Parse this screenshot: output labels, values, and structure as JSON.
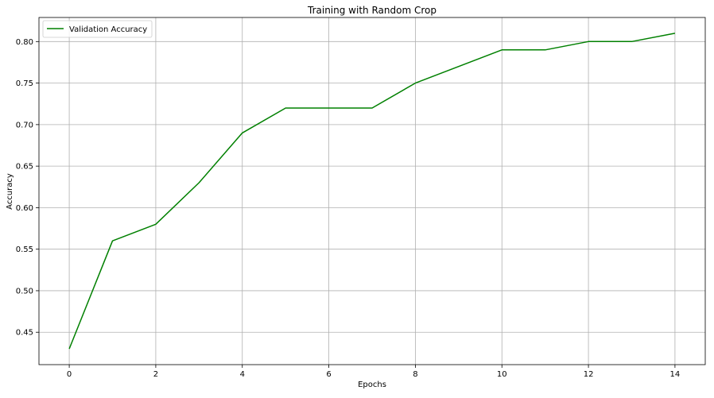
{
  "chart_data": {
    "type": "line",
    "title": "Training with Random Crop",
    "xlabel": "Epochs",
    "ylabel": "Accuracy",
    "x": [
      0,
      1,
      2,
      3,
      4,
      5,
      6,
      7,
      8,
      9,
      10,
      11,
      12,
      13,
      14
    ],
    "series": [
      {
        "name": "Validation Accuracy",
        "color": "#008000",
        "values": [
          0.43,
          0.56,
          0.58,
          0.63,
          0.69,
          0.72,
          0.72,
          0.72,
          0.75,
          0.77,
          0.79,
          0.79,
          0.8,
          0.8,
          0.81
        ]
      }
    ],
    "xlim": [
      -0.7,
      14.7
    ],
    "ylim": [
      0.411,
      0.829
    ],
    "xticks": [
      0,
      2,
      4,
      6,
      8,
      10,
      12,
      14
    ],
    "yticks": [
      0.45,
      0.5,
      0.55,
      0.6,
      0.65,
      0.7,
      0.75,
      0.8
    ],
    "xtick_labels": [
      "0",
      "2",
      "4",
      "6",
      "8",
      "10",
      "12",
      "14"
    ],
    "ytick_labels": [
      "0.45",
      "0.50",
      "0.55",
      "0.60",
      "0.65",
      "0.70",
      "0.75",
      "0.80"
    ],
    "grid": true,
    "legend_position": "top-left"
  }
}
